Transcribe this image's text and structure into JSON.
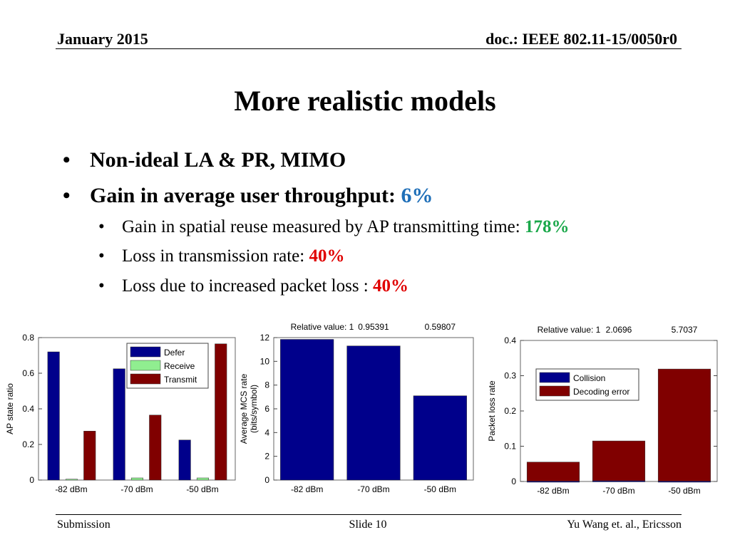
{
  "header": {
    "date": "January 2015",
    "doc": "doc.: IEEE 802.11-15/0050r0"
  },
  "slide": {
    "title": "More realistic models",
    "bullets": [
      {
        "text": "Non-ideal LA & PR, MIMO"
      },
      {
        "text": "Gain in average user throughput: ",
        "highlight": "6%",
        "highlight_color": "#1f6fb8"
      }
    ],
    "sub_bullets": [
      {
        "text": "Gain in spatial reuse measured by AP transmitting time: ",
        "highlight": "178%",
        "highlight_color": "#1aa84a"
      },
      {
        "text": "Loss in transmission rate: ",
        "highlight": "40%",
        "highlight_color": "#e00000"
      },
      {
        "text": "Loss due to increased packet loss : ",
        "highlight": "40%",
        "highlight_color": "#e00000"
      }
    ]
  },
  "chart_data": [
    {
      "type": "bar",
      "categories": [
        "-82 dBm",
        "-70 dBm",
        "-50 dBm"
      ],
      "series": [
        {
          "name": "Defer",
          "color": "#00008b",
          "values": [
            0.72,
            0.625,
            0.225
          ]
        },
        {
          "name": "Receive",
          "color": "#90ee90",
          "values": [
            0.005,
            0.012,
            0.012
          ]
        },
        {
          "name": "Transmit",
          "color": "#800000",
          "values": [
            0.275,
            0.365,
            0.765
          ]
        }
      ],
      "ylabel": "AP state ratio",
      "ylim": [
        0,
        0.8
      ],
      "yticks": [
        "0",
        "0.2",
        "0.4",
        "0.6",
        "0.8"
      ],
      "legend": "top-right"
    },
    {
      "type": "bar",
      "categories": [
        "-82 dBm",
        "-70 dBm",
        "-50 dBm"
      ],
      "values": [
        11.85,
        11.3,
        7.1
      ],
      "color": "#00008b",
      "ylabel": "Average MCS rate",
      "ylabel2": "(bits/symbol)",
      "ylim": [
        0,
        12
      ],
      "yticks": [
        "0",
        "2",
        "4",
        "6",
        "8",
        "10",
        "12"
      ],
      "top_labels": [
        "Relative value: 1",
        "0.95391",
        "0.59807"
      ]
    },
    {
      "type": "bar",
      "stacked": true,
      "categories": [
        "-82 dBm",
        "-70 dBm",
        "-50 dBm"
      ],
      "series": [
        {
          "name": "Collision",
          "color": "#00008b",
          "values": [
            0.001,
            0.002,
            0.001
          ]
        },
        {
          "name": "Decoding error",
          "color": "#800000",
          "values": [
            0.054,
            0.113,
            0.318
          ]
        }
      ],
      "ylabel": "Packet loss rate",
      "ylim": [
        0,
        0.4
      ],
      "yticks": [
        "0",
        "0.1",
        "0.2",
        "0.3",
        "0.4"
      ],
      "top_labels": [
        "Relative value: 1",
        "2.0696",
        "5.7037"
      ],
      "legend": "top-left"
    }
  ],
  "footer": {
    "left": "Submission",
    "center": "Slide 10",
    "right": "Yu Wang et. al., Ericsson"
  }
}
